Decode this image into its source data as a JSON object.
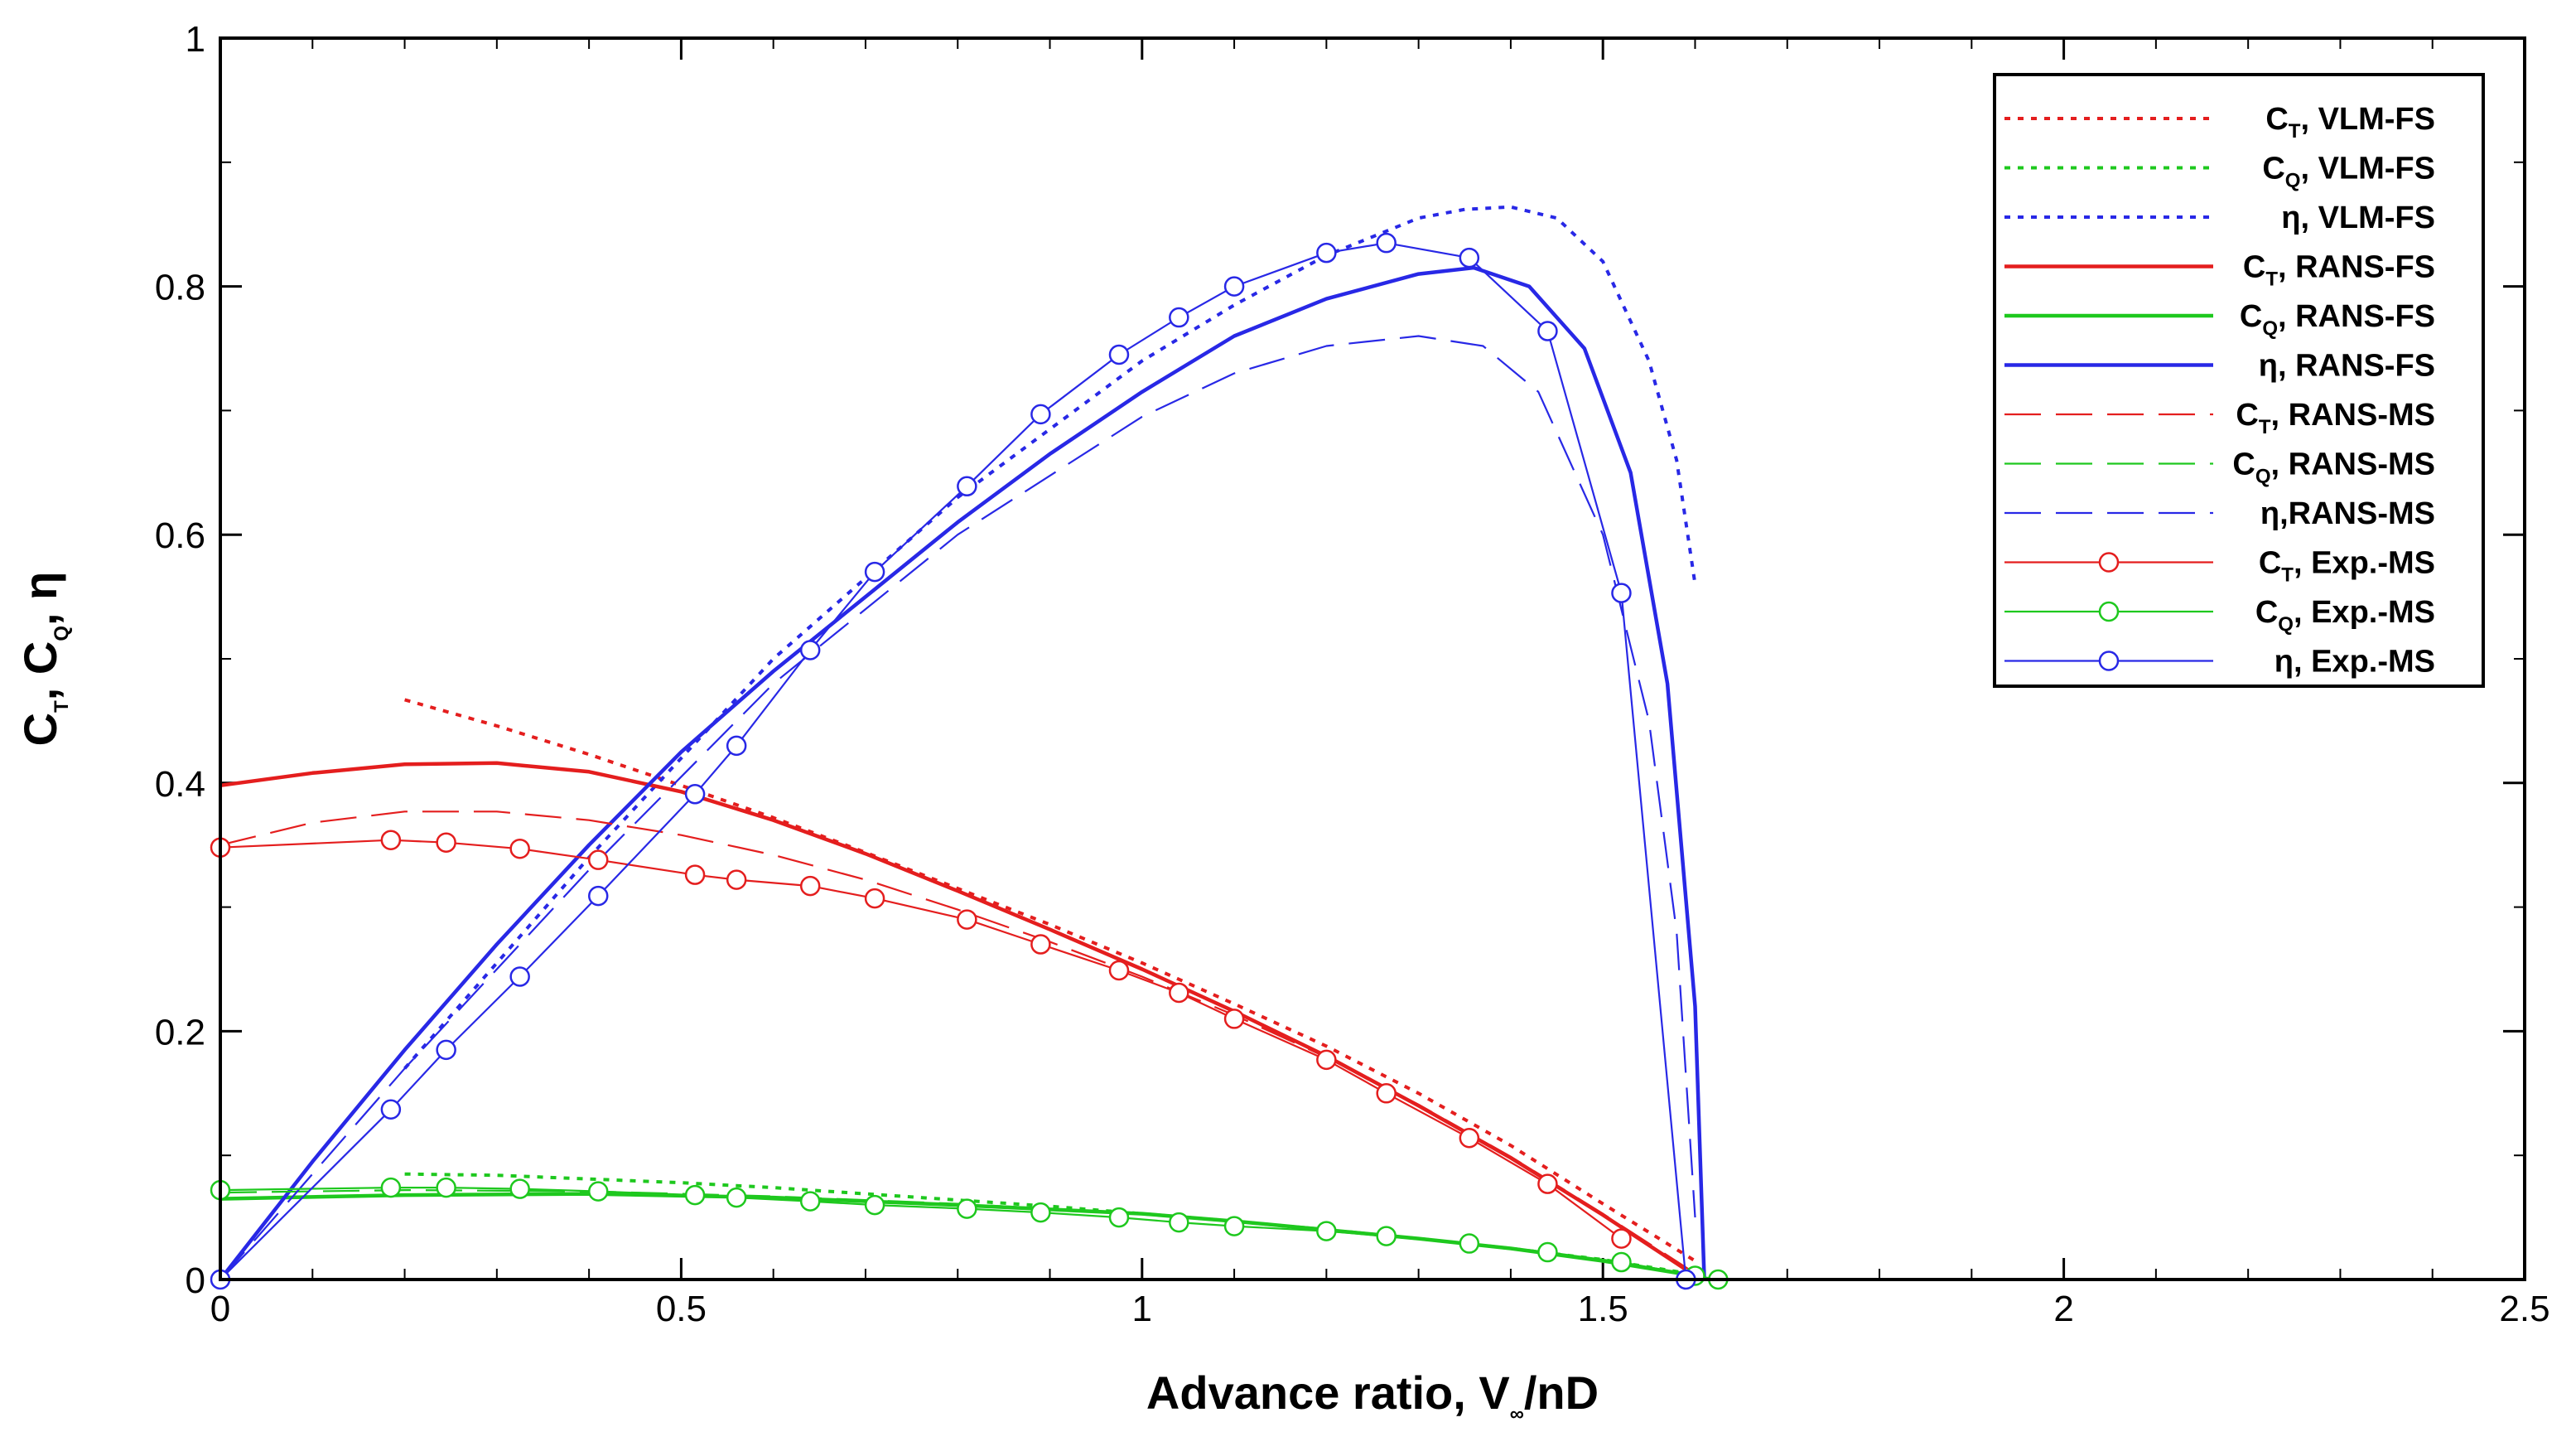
{
  "chart_data": {
    "type": "line",
    "title": "",
    "xlabel": {
      "main": "Advance ratio, V",
      "sub": "∞",
      "tail": "/nD"
    },
    "ylabel": [
      {
        "main": "C",
        "sub": "T"
      },
      {
        "main": ", C",
        "sub": "Q"
      },
      {
        "main": ", η",
        "sub": ""
      }
    ],
    "xlim": [
      0,
      2.5
    ],
    "ylim": [
      0,
      1
    ],
    "xticks": [
      0,
      0.5,
      1,
      1.5,
      2,
      2.5
    ],
    "xtick_labels": [
      "0",
      "0.5",
      "1",
      "1.5",
      "2",
      "2.5"
    ],
    "yticks": [
      0,
      0.2,
      0.4,
      0.6,
      0.8,
      1
    ],
    "ytick_labels": [
      "0",
      "0.2",
      "0.4",
      "0.6",
      "0.8",
      "1"
    ],
    "legend_position": "top-right",
    "colors": {
      "red": "#e41e1e",
      "green": "#1ec81e",
      "blue": "#2828e6"
    },
    "series": [
      {
        "id": "ct-vlm-fs",
        "label": {
          "sym": "C",
          "sub": "T",
          "rest": ", VLM-FS"
        },
        "color": "red",
        "style": "dotted",
        "marker": false,
        "x": [
          0.2,
          0.3,
          0.4,
          0.5,
          0.6,
          0.7,
          0.8,
          0.9,
          1.0,
          1.1,
          1.2,
          1.3,
          1.4,
          1.5,
          1.6
        ],
        "y": [
          0.467,
          0.446,
          0.423,
          0.398,
          0.372,
          0.344,
          0.315,
          0.286,
          0.255,
          0.222,
          0.188,
          0.15,
          0.108,
          0.061,
          0.015
        ]
      },
      {
        "id": "cq-vlm-fs",
        "label": {
          "sym": "C",
          "sub": "Q",
          "rest": ", VLM-FS"
        },
        "color": "green",
        "style": "dotted",
        "marker": false,
        "x": [
          0.2,
          0.3,
          0.4,
          0.5,
          0.6,
          0.7,
          0.8,
          0.9,
          1.0,
          1.1,
          1.2,
          1.3,
          1.4,
          1.5,
          1.6
        ],
        "y": [
          0.085,
          0.084,
          0.081,
          0.078,
          0.074,
          0.069,
          0.064,
          0.059,
          0.053,
          0.047,
          0.04,
          0.033,
          0.025,
          0.016,
          0.004
        ]
      },
      {
        "id": "eta-vlm-fs",
        "label": {
          "sym": "η",
          "sub": "",
          "rest": ", VLM-FS"
        },
        "color": "blue",
        "style": "dotted",
        "marker": false,
        "x": [
          0.2,
          0.4,
          0.6,
          0.8,
          1.0,
          1.1,
          1.2,
          1.3,
          1.35,
          1.4,
          1.45,
          1.5,
          1.55,
          1.58,
          1.6
        ],
        "y": [
          0.17,
          0.34,
          0.5,
          0.63,
          0.74,
          0.785,
          0.825,
          0.855,
          0.862,
          0.864,
          0.855,
          0.82,
          0.74,
          0.66,
          0.56
        ]
      },
      {
        "id": "ct-rans-fs",
        "label": {
          "sym": "C",
          "sub": "T",
          "rest": ", RANS-FS"
        },
        "color": "red",
        "style": "solid",
        "marker": false,
        "x": [
          0,
          0.1,
          0.2,
          0.3,
          0.4,
          0.5,
          0.6,
          0.7,
          0.8,
          0.9,
          1.0,
          1.1,
          1.2,
          1.3,
          1.4,
          1.5,
          1.59
        ],
        "y": [
          0.398,
          0.408,
          0.415,
          0.416,
          0.409,
          0.393,
          0.37,
          0.343,
          0.313,
          0.282,
          0.25,
          0.216,
          0.18,
          0.14,
          0.098,
          0.052,
          0.008
        ]
      },
      {
        "id": "cq-rans-fs",
        "label": {
          "sym": "C",
          "sub": "Q",
          "rest": ", RANS-FS"
        },
        "color": "green",
        "style": "solid",
        "marker": false,
        "x": [
          0,
          0.2,
          0.4,
          0.6,
          0.8,
          1.0,
          1.1,
          1.2,
          1.3,
          1.4,
          1.5,
          1.6
        ],
        "y": [
          0.065,
          0.068,
          0.069,
          0.066,
          0.06,
          0.053,
          0.047,
          0.04,
          0.033,
          0.025,
          0.015,
          0.003
        ]
      },
      {
        "id": "eta-rans-fs",
        "label": {
          "sym": "η",
          "sub": "",
          "rest": ", RANS-FS"
        },
        "color": "blue",
        "style": "solid",
        "marker": false,
        "x": [
          0,
          0.1,
          0.2,
          0.3,
          0.4,
          0.5,
          0.6,
          0.7,
          0.8,
          0.9,
          1.0,
          1.1,
          1.2,
          1.3,
          1.36,
          1.42,
          1.48,
          1.53,
          1.57,
          1.6,
          1.61
        ],
        "y": [
          0,
          0.095,
          0.185,
          0.27,
          0.35,
          0.425,
          0.49,
          0.55,
          0.61,
          0.665,
          0.715,
          0.76,
          0.79,
          0.81,
          0.815,
          0.8,
          0.75,
          0.65,
          0.48,
          0.22,
          0.0
        ]
      },
      {
        "id": "ct-rans-ms",
        "label": {
          "sym": "C",
          "sub": "T",
          "rest": ", RANS-MS"
        },
        "color": "red",
        "style": "dashed",
        "marker": false,
        "x": [
          0,
          0.1,
          0.2,
          0.3,
          0.4,
          0.5,
          0.6,
          0.7,
          0.8,
          0.9,
          1.0,
          1.1,
          1.2,
          1.3,
          1.4,
          1.5,
          1.6
        ],
        "y": [
          0.35,
          0.368,
          0.377,
          0.377,
          0.37,
          0.358,
          0.342,
          0.322,
          0.298,
          0.272,
          0.244,
          0.213,
          0.179,
          0.141,
          0.099,
          0.053,
          0.005
        ]
      },
      {
        "id": "cq-rans-ms",
        "label": {
          "sym": "C",
          "sub": "Q",
          "rest": ", RANS-MS"
        },
        "color": "green",
        "style": "dashed",
        "marker": false,
        "x": [
          0,
          0.2,
          0.4,
          0.6,
          0.8,
          1.0,
          1.2,
          1.4,
          1.5,
          1.6
        ],
        "y": [
          0.07,
          0.072,
          0.071,
          0.067,
          0.061,
          0.053,
          0.041,
          0.025,
          0.015,
          0.004
        ]
      },
      {
        "id": "eta-rans-ms",
        "label": {
          "sym": "η",
          "sub": "",
          "rest": ",RANS-MS"
        },
        "color": "blue",
        "style": "dashed",
        "marker": false,
        "x": [
          0,
          0.2,
          0.4,
          0.6,
          0.8,
          1.0,
          1.1,
          1.2,
          1.3,
          1.37,
          1.43,
          1.5,
          1.55,
          1.58,
          1.6
        ],
        "y": [
          0,
          0.17,
          0.33,
          0.48,
          0.6,
          0.695,
          0.73,
          0.752,
          0.76,
          0.752,
          0.715,
          0.6,
          0.45,
          0.28,
          0.05
        ]
      },
      {
        "id": "ct-exp-ms",
        "label": {
          "sym": "C",
          "sub": "T",
          "rest": ", Exp.-MS"
        },
        "color": "red",
        "style": "solid-thin",
        "marker": true,
        "x": [
          0,
          0.185,
          0.245,
          0.325,
          0.41,
          0.515,
          0.56,
          0.64,
          0.71,
          0.81,
          0.89,
          0.975,
          1.04,
          1.1,
          1.2,
          1.265,
          1.355,
          1.44,
          1.52
        ],
        "y": [
          0.348,
          0.354,
          0.352,
          0.347,
          0.338,
          0.326,
          0.322,
          0.317,
          0.307,
          0.29,
          0.27,
          0.249,
          0.231,
          0.21,
          0.177,
          0.15,
          0.114,
          0.077,
          0.033
        ]
      },
      {
        "id": "cq-exp-ms",
        "label": {
          "sym": "C",
          "sub": "Q",
          "rest": ", Exp.-MS"
        },
        "color": "green",
        "style": "solid-thin",
        "marker": true,
        "x": [
          0,
          0.185,
          0.245,
          0.325,
          0.41,
          0.515,
          0.56,
          0.64,
          0.71,
          0.81,
          0.89,
          0.975,
          1.04,
          1.1,
          1.2,
          1.265,
          1.355,
          1.44,
          1.52,
          1.6,
          1.625
        ],
        "y": [
          0.072,
          0.074,
          0.074,
          0.073,
          0.071,
          0.068,
          0.066,
          0.063,
          0.06,
          0.057,
          0.054,
          0.05,
          0.046,
          0.043,
          0.039,
          0.035,
          0.029,
          0.022,
          0.014,
          0.003,
          0.0
        ]
      },
      {
        "id": "eta-exp-ms",
        "label": {
          "sym": "η",
          "sub": "",
          "rest": ", Exp.-MS"
        },
        "color": "blue",
        "style": "solid-thin",
        "marker": true,
        "x": [
          0,
          0.185,
          0.245,
          0.325,
          0.41,
          0.515,
          0.56,
          0.64,
          0.71,
          0.81,
          0.89,
          0.975,
          1.04,
          1.1,
          1.2,
          1.265,
          1.355,
          1.44,
          1.52,
          1.59
        ],
        "y": [
          0,
          0.137,
          0.185,
          0.244,
          0.309,
          0.391,
          0.43,
          0.507,
          0.57,
          0.639,
          0.697,
          0.745,
          0.775,
          0.8,
          0.827,
          0.835,
          0.823,
          0.764,
          0.553,
          0.0
        ]
      }
    ]
  }
}
